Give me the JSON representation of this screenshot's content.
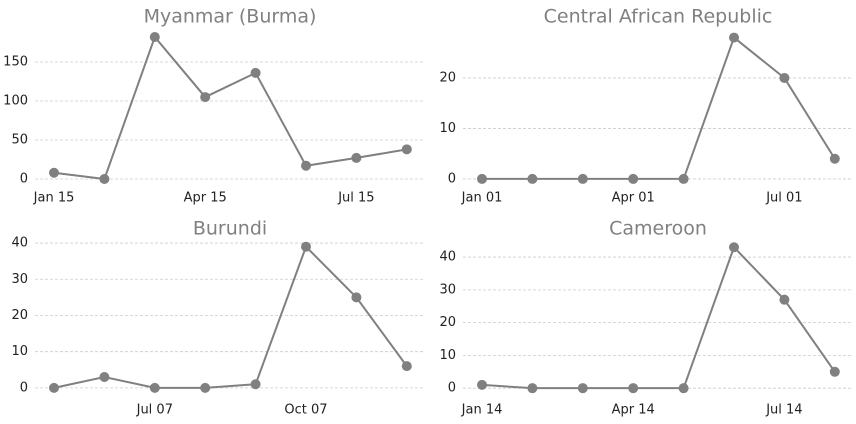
{
  "chart_data": [
    {
      "type": "line",
      "title": "Myanmar (Burma)",
      "categories": [
        "Jan 15",
        null,
        null,
        "Apr 15",
        null,
        null,
        "Jul 15",
        null
      ],
      "values": [
        8,
        0,
        182,
        105,
        136,
        17,
        27,
        38
      ],
      "color": "#808080",
      "ylim": [
        -9,
        191
      ],
      "yticks": [
        0,
        50,
        100,
        150
      ],
      "grid": true
    },
    {
      "type": "line",
      "title": "Central African Republic",
      "categories": [
        "Jan 01",
        null,
        null,
        "Apr 01",
        null,
        null,
        "Jul 01",
        null
      ],
      "values": [
        0,
        0,
        0,
        0,
        0,
        28,
        20,
        4
      ],
      "color": "#808080",
      "ylim": [
        -1.4,
        29.5
      ],
      "yticks": [
        0,
        10,
        20
      ],
      "grid": true
    },
    {
      "type": "line",
      "title": "Burundi",
      "categories": [
        null,
        null,
        "Jul 07",
        null,
        null,
        "Oct 07",
        null,
        null
      ],
      "values": [
        0,
        3,
        0,
        0,
        1,
        39,
        25,
        6
      ],
      "color": "#808080",
      "ylim": [
        -2.8,
        40.3
      ],
      "yticks": [
        0,
        10,
        20,
        30,
        40
      ],
      "grid": true
    },
    {
      "type": "line",
      "title": "Cameroon",
      "categories": [
        "Jan 14",
        null,
        null,
        "Apr 14",
        null,
        null,
        "Jul 14",
        null
      ],
      "values": [
        1,
        0,
        0,
        0,
        0,
        43,
        27,
        5
      ],
      "color": "#808080",
      "ylim": [
        -3,
        44.6
      ],
      "yticks": [
        0,
        10,
        20,
        30,
        40
      ],
      "grid": true
    }
  ]
}
